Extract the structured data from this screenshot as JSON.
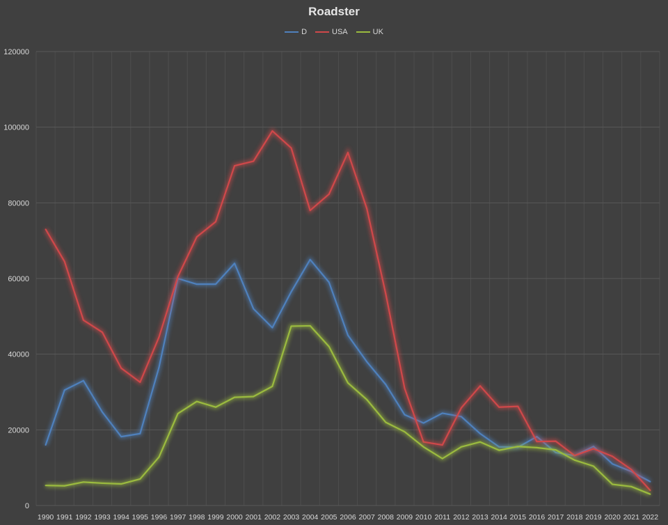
{
  "chart_data": {
    "type": "line",
    "title": "Roadster",
    "xlabel": "",
    "ylabel": "",
    "ylim": [
      0,
      120000
    ],
    "yticks": [
      "0",
      "20000",
      "40000",
      "60000",
      "80000",
      "100000",
      "120000"
    ],
    "grid": true,
    "legend_position": "top",
    "categories": [
      "1990",
      "1991",
      "1992",
      "1993",
      "1994",
      "1995",
      "1996",
      "1997",
      "1998",
      "1999",
      "2000",
      "2001",
      "2002",
      "2003",
      "2004",
      "2005",
      "2006",
      "2007",
      "2008",
      "2009",
      "2010",
      "2011",
      "2012",
      "2013",
      "2014",
      "2015",
      "2016",
      "2017",
      "2018",
      "2019",
      "2020",
      "2021",
      "2022"
    ],
    "series": [
      {
        "name": "D",
        "color": "#4f81bd",
        "values": [
          16000,
          30500,
          33000,
          24700,
          18200,
          19000,
          36500,
          60000,
          58500,
          58500,
          64000,
          52000,
          47000,
          56500,
          65000,
          59000,
          45000,
          38000,
          32000,
          24000,
          21800,
          24400,
          23500,
          19000,
          15500,
          15400,
          18200,
          14000,
          13200,
          15600,
          11000,
          9000,
          6300
        ]
      },
      {
        "name": "USA",
        "color": "#d0484a",
        "values": [
          73000,
          64500,
          49000,
          45800,
          36300,
          32600,
          44500,
          60500,
          71000,
          75000,
          89800,
          91000,
          99000,
          94500,
          78000,
          82300,
          93300,
          78500,
          56000,
          31000,
          16800,
          16000,
          25800,
          31600,
          26000,
          26200,
          16900,
          17000,
          13200,
          15000,
          13000,
          9500,
          4000
        ]
      },
      {
        "name": "UK",
        "color": "#9bbb3f",
        "values": [
          5300,
          5200,
          6200,
          5900,
          5700,
          7000,
          12800,
          24300,
          27500,
          26000,
          28600,
          28800,
          31500,
          47400,
          47500,
          42000,
          32400,
          28000,
          22000,
          19500,
          15500,
          12400,
          15500,
          16800,
          14600,
          15600,
          15300,
          14700,
          12000,
          10400,
          5600,
          5000,
          3000
        ]
      }
    ]
  }
}
